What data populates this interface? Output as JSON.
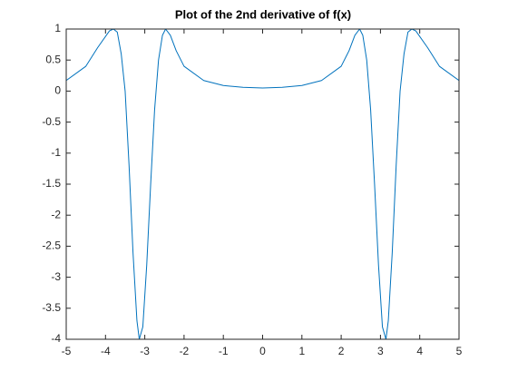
{
  "chart_data": {
    "type": "line",
    "title": "Plot of the 2nd derivative of f(x)",
    "x": [
      -5,
      -4.5,
      -4.2,
      -3.9,
      -3.8,
      -3.7,
      -3.6,
      -3.5,
      -3.4,
      -3.3,
      -3.2,
      -3.14,
      -3.05,
      -2.95,
      -2.85,
      -2.75,
      -2.65,
      -2.55,
      -2.47,
      -2.35,
      -2.2,
      -2.0,
      -1.5,
      -1.0,
      -0.5,
      0,
      0.5,
      1.0,
      1.5,
      2.0,
      2.2,
      2.35,
      2.47,
      2.55,
      2.65,
      2.75,
      2.85,
      2.95,
      3.05,
      3.14,
      3.2,
      3.3,
      3.4,
      3.5,
      3.6,
      3.7,
      3.8,
      3.9,
      4.2,
      4.5,
      5
    ],
    "series": [
      {
        "color": "#0072bd",
        "values": [
          0.17,
          0.4,
          0.7,
          0.97,
          1.0,
          0.95,
          0.6,
          0,
          -1.2,
          -2.6,
          -3.7,
          -4.0,
          -3.8,
          -2.8,
          -1.5,
          -0.3,
          0.5,
          0.9,
          1.0,
          0.9,
          0.65,
          0.4,
          0.17,
          0.09,
          0.06,
          0.05,
          0.06,
          0.09,
          0.17,
          0.4,
          0.65,
          0.9,
          1.0,
          0.9,
          0.5,
          -0.3,
          -1.5,
          -2.8,
          -3.8,
          -4.0,
          -3.7,
          -2.6,
          -1.2,
          0,
          0.6,
          0.95,
          1.0,
          0.97,
          0.7,
          0.4,
          0.17
        ]
      }
    ],
    "xlim": [
      -5,
      5
    ],
    "ylim": [
      -4,
      1
    ],
    "xticks": [
      -5,
      -4,
      -3,
      -2,
      -1,
      0,
      1,
      2,
      3,
      4,
      5
    ],
    "yticks": [
      -4,
      -3.5,
      -3,
      -2.5,
      -2,
      -1.5,
      -1,
      -0.5,
      0,
      0.5,
      1
    ]
  }
}
